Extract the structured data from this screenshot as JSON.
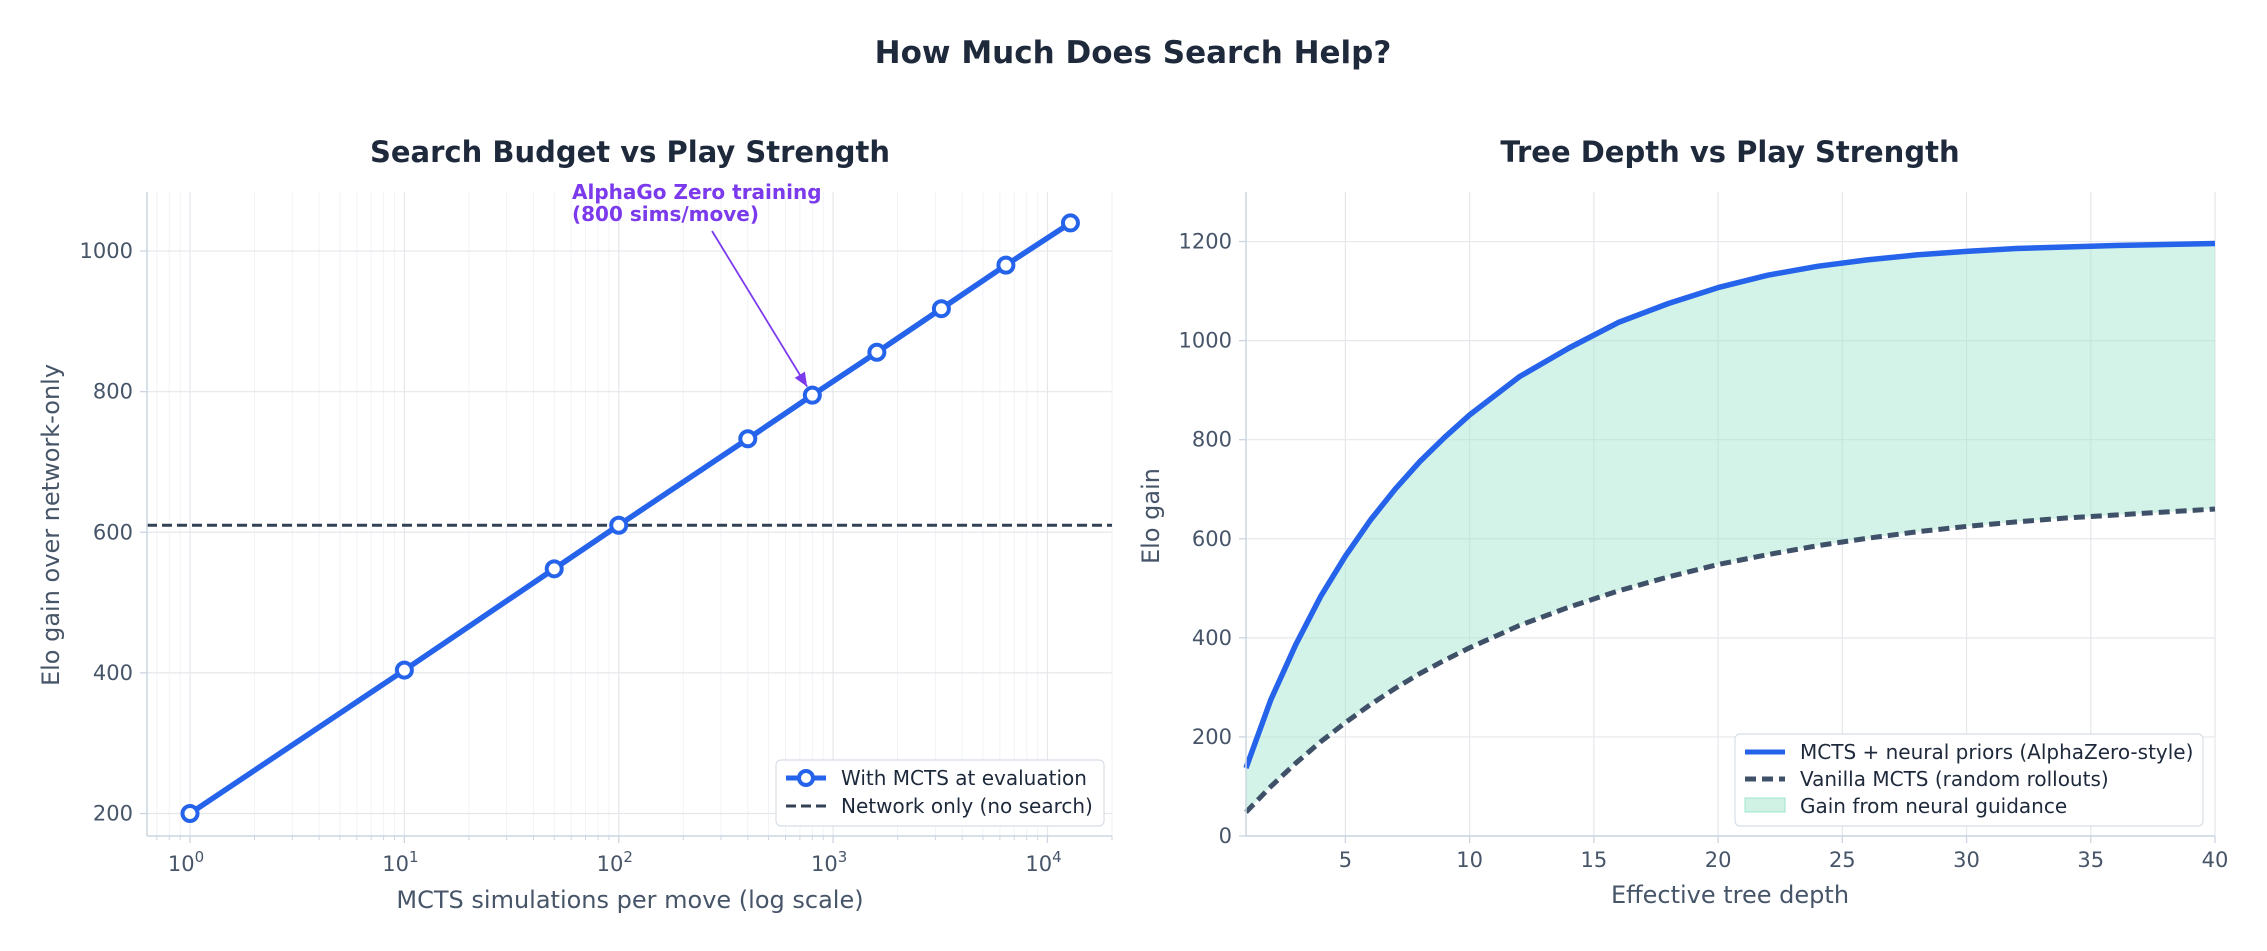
{
  "suptitle": "How Much Does Search Help?",
  "colors": {
    "title": "#1e293b",
    "axis_text": "#475569",
    "spine": "#cbd5e1",
    "grid": "#e5e7eb",
    "mcts_line": "#2563eb",
    "network_line": "#334155",
    "vanilla_line": "#3f5168",
    "fill": "#9fe5cc",
    "annotation": "#7c3aed"
  },
  "chart_data": [
    {
      "type": "line",
      "title": "Search Budget vs Play Strength",
      "xlabel": "MCTS simulations per move (log scale)",
      "ylabel": "Elo gain over network-only",
      "xscale": "log",
      "xlim": [
        0.63,
        20000
      ],
      "ylim": [
        168,
        1084
      ],
      "x_ticks": [
        1,
        10,
        100,
        1000,
        10000
      ],
      "x_tick_labels": [
        {
          "base": "10",
          "exp": "0"
        },
        {
          "base": "10",
          "exp": "1"
        },
        {
          "base": "10",
          "exp": "2"
        },
        {
          "base": "10",
          "exp": "3"
        },
        {
          "base": "10",
          "exp": "4"
        }
      ],
      "y_ticks": [
        200,
        400,
        600,
        800,
        1000
      ],
      "y_tick_labels": [
        "200",
        "400",
        "600",
        "800",
        "1000"
      ],
      "grid": true,
      "series": [
        {
          "name": "With MCTS at evaluation",
          "style": "solid-markers",
          "x": [
            1,
            10,
            50,
            100,
            400,
            800,
            1600,
            3200,
            6400,
            12800
          ],
          "y": [
            200,
            404,
            548,
            610,
            733,
            795,
            856,
            918,
            980,
            1040
          ]
        },
        {
          "name": "Network only (no search)",
          "style": "dashed-hline",
          "y": 610
        }
      ],
      "annotation": {
        "lines": [
          "AlphaGo Zero training",
          "(800 sims/move)"
        ],
        "target": {
          "x": 800,
          "y": 795
        },
        "text_anchor": {
          "x": 58,
          "y": 1068
        }
      },
      "legend": {
        "position": "lower-right"
      }
    },
    {
      "type": "area",
      "title": "Tree Depth vs Play Strength",
      "xlabel": "Effective tree depth",
      "ylabel": "Elo gain",
      "xlim": [
        1,
        40
      ],
      "ylim": [
        0,
        1300
      ],
      "x_ticks": [
        5,
        10,
        15,
        20,
        25,
        30,
        35,
        40
      ],
      "x_tick_labels": [
        "5",
        "10",
        "15",
        "20",
        "25",
        "30",
        "35",
        "40"
      ],
      "y_ticks": [
        0,
        200,
        400,
        600,
        800,
        1000,
        1200
      ],
      "y_tick_labels": [
        "0",
        "200",
        "400",
        "600",
        "800",
        "1000",
        "1200"
      ],
      "grid": true,
      "x": [
        1,
        2,
        3,
        4,
        5,
        6,
        7,
        8,
        9,
        10,
        12,
        14,
        16,
        18,
        20,
        22,
        24,
        26,
        28,
        30,
        32,
        34,
        36,
        38,
        40
      ],
      "series": [
        {
          "name": "MCTS + neural priors (AlphaZero-style)",
          "style": "solid",
          "y": [
            137,
            275,
            386,
            483,
            565,
            637,
            700,
            756,
            805,
            850,
            927,
            985,
            1037,
            1075,
            1107,
            1132,
            1150,
            1163,
            1173,
            1180,
            1186,
            1189,
            1192,
            1194,
            1196
          ]
        },
        {
          "name": "Vanilla MCTS (random rollouts)",
          "style": "dashed",
          "y": [
            48,
            100,
            147,
            190,
            229,
            265,
            298,
            328,
            355,
            380,
            425,
            462,
            495,
            523,
            548,
            568,
            586,
            601,
            614,
            625,
            634,
            642,
            648,
            654,
            660
          ]
        },
        {
          "name": "Gain from neural guidance",
          "style": "fill-between"
        }
      ],
      "legend": {
        "position": "lower-right"
      }
    }
  ]
}
